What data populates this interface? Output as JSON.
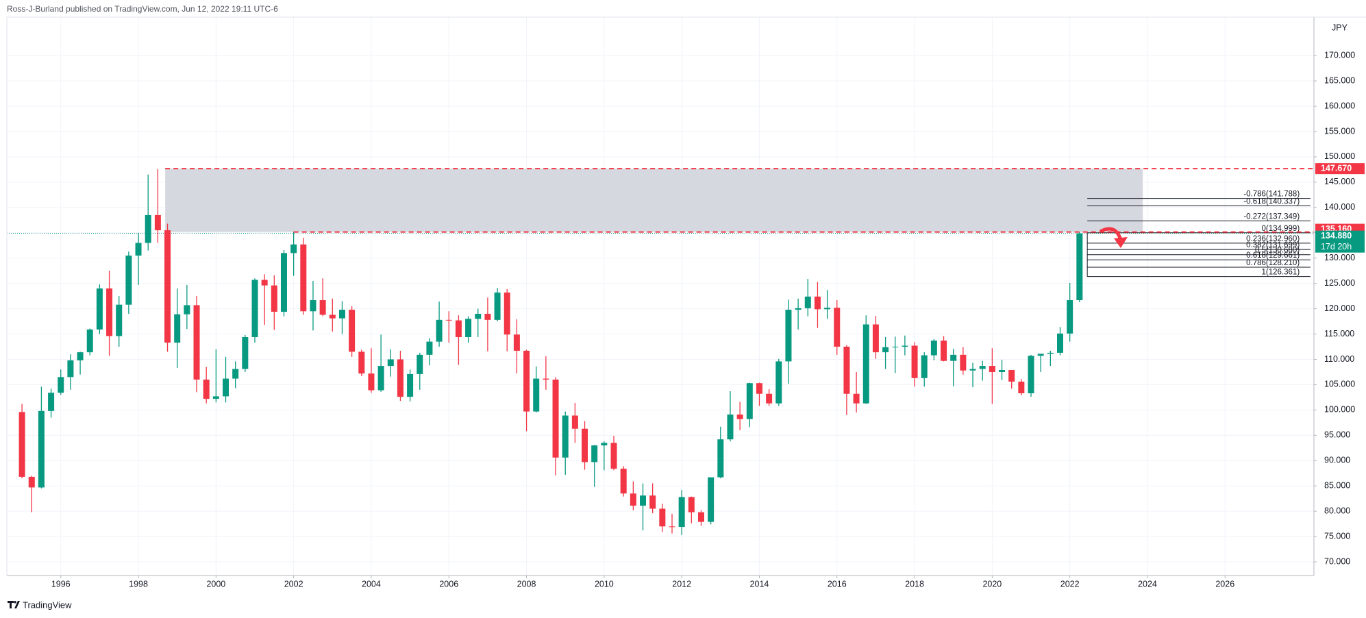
{
  "header": {
    "publisher": "Ross-J-Burland published on TradingView.com, Jun 12, 2022 19:11 UTC-6",
    "brand": "TradingView"
  },
  "chart_data": {
    "type": "candlestick",
    "currency": "JPY",
    "up_color": "#089981",
    "down_color": "#f23645",
    "grid": true,
    "xlim": [
      1994.61,
      2028.29
    ],
    "ylim": [
      67.3,
      177.6
    ],
    "xticks": [
      1996,
      1998,
      2000,
      2002,
      2004,
      2006,
      2008,
      2010,
      2012,
      2014,
      2016,
      2018,
      2020,
      2022,
      2024,
      2026
    ],
    "yticks": [
      {
        "value": 70,
        "label": "70.000"
      },
      {
        "value": 75,
        "label": "75.000"
      },
      {
        "value": 80,
        "label": "80.000"
      },
      {
        "value": 85,
        "label": "85.000"
      },
      {
        "value": 90,
        "label": "90.000"
      },
      {
        "value": 95,
        "label": "95.000"
      },
      {
        "value": 100,
        "label": "100.000"
      },
      {
        "value": 105,
        "label": "105.000"
      },
      {
        "value": 110,
        "label": "110.000"
      },
      {
        "value": 115,
        "label": "115.000"
      },
      {
        "value": 120,
        "label": "120.000"
      },
      {
        "value": 125,
        "label": "125.000"
      },
      {
        "value": 130,
        "label": "130.000"
      },
      {
        "value": 135,
        "label": "135.000"
      },
      {
        "value": 140,
        "label": "140.000"
      },
      {
        "value": 145,
        "label": "145.000"
      },
      {
        "value": 150,
        "label": "150.000"
      },
      {
        "value": 155,
        "label": "155.000"
      },
      {
        "value": 160,
        "label": "160.000"
      },
      {
        "value": 165,
        "label": "165.000"
      },
      {
        "value": 170,
        "label": "170.000"
      }
    ],
    "x": [
      1995.0,
      1995.25,
      1995.5,
      1995.75,
      1996.0,
      1996.25,
      1996.5,
      1996.75,
      1997.0,
      1997.25,
      1997.5,
      1997.75,
      1998.0,
      1998.25,
      1998.5,
      1998.75,
      1999.0,
      1999.25,
      1999.5,
      1999.75,
      2000.0,
      2000.25,
      2000.5,
      2000.75,
      2001.0,
      2001.25,
      2001.5,
      2001.75,
      2002.0,
      2002.25,
      2002.5,
      2002.75,
      2003.0,
      2003.25,
      2003.5,
      2003.75,
      2004.0,
      2004.25,
      2004.5,
      2004.75,
      2005.0,
      2005.25,
      2005.5,
      2005.75,
      2006.0,
      2006.25,
      2006.5,
      2006.75,
      2007.0,
      2007.25,
      2007.5,
      2007.75,
      2008.0,
      2008.25,
      2008.5,
      2008.75,
      2009.0,
      2009.25,
      2009.5,
      2009.75,
      2010.0,
      2010.25,
      2010.5,
      2010.75,
      2011.0,
      2011.25,
      2011.5,
      2011.75,
      2012.0,
      2012.25,
      2012.5,
      2012.75,
      2013.0,
      2013.25,
      2013.5,
      2013.75,
      2014.0,
      2014.25,
      2014.5,
      2014.75,
      2015.0,
      2015.25,
      2015.5,
      2015.75,
      2016.0,
      2016.25,
      2016.5,
      2016.75,
      2017.0,
      2017.25,
      2017.5,
      2017.75,
      2018.0,
      2018.25,
      2018.5,
      2018.75,
      2019.0,
      2019.25,
      2019.5,
      2019.75,
      2020.0,
      2020.25,
      2020.5,
      2020.75,
      2021.0,
      2021.25,
      2021.5,
      2021.75,
      2022.0,
      2022.25
    ],
    "open": [
      99.6,
      86.8,
      84.7,
      99.8,
      103.4,
      106.5,
      109.8,
      111.4,
      115.9,
      124.0,
      114.6,
      120.8,
      130.5,
      133.0,
      138.5,
      135.5,
      113.3,
      118.9,
      120.7,
      106.0,
      102.2,
      102.7,
      106.2,
      108.1,
      114.4,
      125.7,
      124.6,
      119.4,
      131.0,
      132.7,
      119.5,
      121.7,
      118.8,
      118.1,
      119.8,
      111.5,
      107.2,
      103.9,
      108.7,
      110.0,
      102.6,
      107.1,
      110.9,
      113.5,
      117.8,
      117.7,
      114.4,
      118.0,
      119.0,
      117.8,
      123.2,
      114.9,
      111.7,
      99.7,
      106.2,
      106.0,
      90.6,
      98.9,
      96.3,
      89.7,
      93.0,
      93.5,
      88.4,
      83.5,
      81.1,
      83.1,
      80.5,
      77.0,
      76.9,
      82.8,
      79.8,
      77.9,
      86.7,
      94.2,
      99.1,
      98.2,
      105.3,
      103.2,
      101.3,
      109.6,
      119.8,
      120.1,
      122.4,
      119.9,
      120.2,
      112.5,
      103.2,
      101.3,
      116.9,
      111.4,
      112.4,
      112.5,
      112.7,
      106.3,
      110.8,
      113.7,
      109.7,
      110.9,
      107.8,
      108.1,
      108.7,
      107.5,
      107.9,
      105.6,
      103.3,
      110.7,
      111.1,
      111.3,
      115.1,
      121.7
    ],
    "high": [
      101.2,
      87.0,
      104.6,
      104.2,
      108.0,
      111.0,
      111.5,
      116.1,
      124.8,
      127.5,
      122.5,
      131.3,
      135.0,
      146.5,
      147.6,
      136.8,
      124.0,
      124.7,
      122.5,
      108.5,
      112.0,
      110.5,
      109.6,
      114.8,
      126.0,
      126.8,
      126.6,
      131.6,
      135.2,
      134.0,
      125.5,
      126.0,
      122.0,
      121.5,
      120.5,
      111.9,
      112.2,
      114.9,
      112.0,
      111.7,
      108.0,
      111.3,
      114.2,
      121.4,
      119.5,
      118.7,
      118.5,
      120.0,
      122.2,
      124.1,
      123.9,
      117.9,
      111.9,
      108.6,
      110.6,
      106.5,
      99.7,
      101.4,
      97.8,
      93.1,
      93.8,
      94.9,
      88.9,
      85.9,
      85.5,
      85.5,
      81.5,
      79.5,
      84.2,
      82.9,
      80.2,
      86.6,
      96.7,
      103.7,
      101.6,
      105.4,
      105.4,
      104.1,
      110.1,
      121.8,
      122.0,
      125.9,
      125.3,
      123.7,
      121.7,
      112.8,
      107.5,
      118.7,
      118.6,
      114.4,
      114.5,
      114.7,
      113.4,
      111.4,
      114.0,
      114.6,
      112.1,
      112.4,
      109.3,
      109.7,
      112.2,
      109.9,
      107.9,
      106.1,
      110.9,
      111.1,
      111.7,
      116.4,
      125.1,
      135.2
    ],
    "low": [
      86.5,
      79.8,
      84.5,
      98.5,
      103.0,
      104.0,
      107.0,
      110.8,
      115.0,
      110.7,
      112.5,
      119.0,
      124.7,
      131.5,
      133.0,
      111.5,
      108.3,
      116.0,
      103.5,
      101.3,
      101.5,
      101.5,
      104.3,
      107.5,
      113.3,
      116.8,
      115.8,
      118.5,
      126.5,
      118.8,
      115.7,
      118.5,
      115.5,
      115.0,
      110.5,
      106.7,
      103.4,
      103.6,
      106.6,
      101.8,
      101.7,
      104.0,
      108.8,
      112.5,
      113.3,
      108.9,
      113.3,
      114.4,
      111.6,
      117.5,
      111.6,
      107.2,
      95.8,
      99.5,
      104.0,
      87.1,
      87.2,
      93.5,
      88.2,
      84.8,
      88.1,
      88.1,
      82.9,
      80.2,
      76.2,
      79.6,
      75.9,
      75.6,
      75.3,
      77.6,
      77.1,
      77.4,
      86.5,
      93.8,
      96.0,
      96.6,
      100.8,
      100.8,
      100.8,
      105.2,
      115.9,
      118.5,
      116.2,
      118.0,
      110.9,
      99.0,
      99.5,
      101.2,
      110.1,
      108.1,
      107.3,
      110.8,
      104.6,
      104.6,
      109.8,
      109.6,
      104.7,
      107.0,
      104.5,
      105.8,
      101.2,
      105.9,
      104.2,
      102.9,
      102.6,
      107.5,
      108.7,
      110.8,
      113.5,
      121.3
    ],
    "close": [
      86.8,
      84.7,
      99.8,
      103.4,
      106.5,
      109.8,
      111.4,
      115.9,
      124.0,
      114.6,
      120.8,
      130.5,
      133.0,
      138.5,
      135.5,
      113.3,
      118.9,
      120.7,
      106.0,
      102.2,
      102.7,
      106.2,
      108.1,
      114.4,
      125.7,
      124.6,
      119.4,
      131.0,
      132.7,
      119.5,
      121.7,
      118.8,
      118.1,
      119.8,
      111.5,
      107.2,
      103.9,
      108.7,
      110.0,
      102.6,
      107.1,
      110.9,
      113.5,
      117.8,
      117.7,
      114.4,
      118.0,
      119.0,
      117.8,
      123.2,
      114.9,
      111.7,
      99.7,
      106.2,
      106.0,
      90.6,
      98.9,
      96.3,
      89.7,
      93.0,
      93.5,
      88.4,
      83.5,
      81.1,
      83.1,
      80.5,
      77.0,
      76.9,
      82.8,
      79.8,
      77.9,
      86.7,
      94.2,
      99.1,
      98.2,
      105.3,
      103.2,
      101.3,
      109.6,
      119.8,
      120.1,
      122.4,
      119.9,
      120.2,
      112.5,
      103.2,
      101.3,
      116.9,
      111.4,
      112.4,
      112.5,
      112.7,
      106.3,
      110.8,
      113.7,
      109.7,
      110.9,
      107.8,
      108.1,
      108.7,
      107.5,
      107.9,
      105.6,
      103.3,
      110.7,
      111.1,
      111.3,
      115.1,
      121.7,
      134.88
    ],
    "zone": {
      "x": [
        1998.69,
        2023.88
      ],
      "y": [
        135.16,
        147.67
      ],
      "color": "#d1d4dc"
    },
    "resistance_lines": [
      {
        "value": 147.67,
        "x_start": 1998.69,
        "color": "#f23645"
      },
      {
        "value": 135.16,
        "x_start": 2002.0,
        "color": "#f23645"
      }
    ],
    "current_line": {
      "value": 134.88,
      "color": "#089981"
    },
    "price_labels": [
      {
        "value": 147.67,
        "label": "147.670",
        "color": "#f23645"
      },
      {
        "value": 135.16,
        "label": "135.160",
        "color": "#f23645"
      },
      {
        "value": 134.88,
        "label": "134.880",
        "color": "#089981",
        "countdown": "17d 20h"
      }
    ],
    "fib": {
      "x": [
        2022.45,
        2028.2
      ],
      "levels": [
        {
          "label": "-0.786(141.788)",
          "value": 141.788
        },
        {
          "label": "-0.618(140.337)",
          "value": 140.337
        },
        {
          "label": "-0.272(137.349)",
          "value": 137.349
        },
        {
          "label": "0(134.999)",
          "value": 134.999
        },
        {
          "label": "0.236(132.960)",
          "value": 132.96
        },
        {
          "label": "0.382(131.699)",
          "value": 131.699
        },
        {
          "label": "0.5(130.680)",
          "value": 130.68
        },
        {
          "label": "0.618(129.661)",
          "value": 129.661
        },
        {
          "label": "0.786(128.210)",
          "value": 128.21
        },
        {
          "label": "1(126.361)",
          "value": 126.361
        }
      ]
    }
  }
}
